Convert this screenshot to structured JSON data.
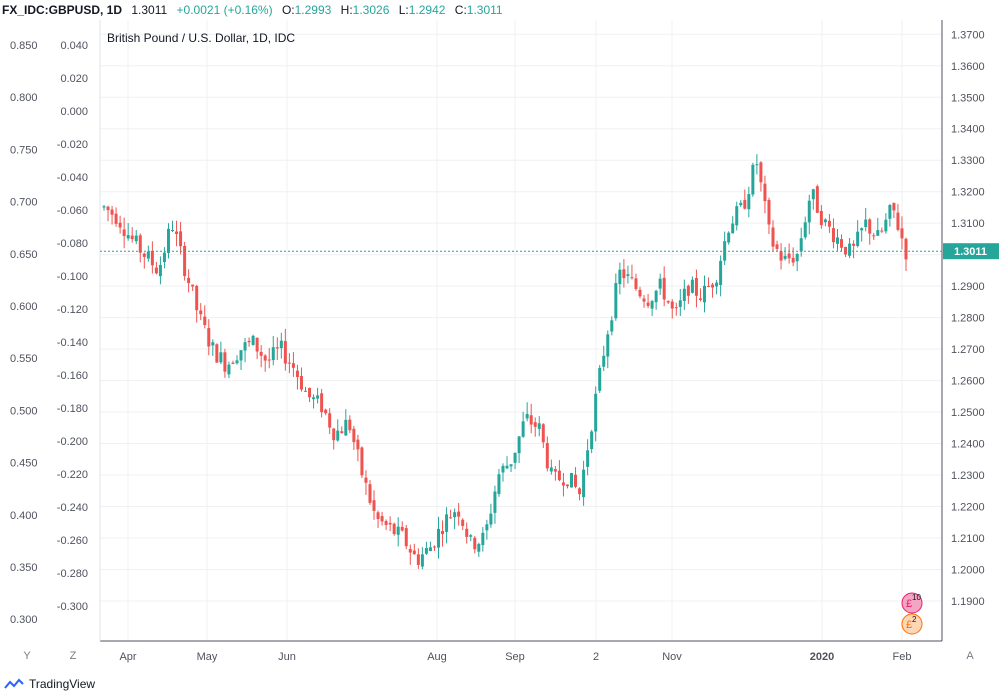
{
  "header": {
    "symbol": "FX_IDC:GBPUSD, 1D",
    "last": "1.3011",
    "change": "+0.0021 (+0.16%)",
    "o_label": "O:",
    "o_value": "1.2993",
    "h_label": "H:",
    "h_value": "1.3026",
    "l_label": "L:",
    "l_value": "1.2942",
    "c_label": "C:",
    "c_value": "1.3011"
  },
  "chart_title": "British Pound / U.S. Dollar, 1D, IDC",
  "price_badge": "1.3011",
  "buttons": {
    "y": "Y",
    "z": "Z",
    "a": "A"
  },
  "branding": "TradingView",
  "colors": {
    "up": "#26a69a",
    "down": "#ef5350",
    "grid": "#eef0f3",
    "axis": "#50535e",
    "price_line": "#26a69a"
  },
  "chart_data": {
    "type": "candlestick",
    "title": "British Pound / U.S. Dollar, 1D, IDC",
    "right_axis": {
      "ticks": [
        "1.3700",
        "1.3600",
        "1.3500",
        "1.3400",
        "1.3300",
        "1.3200",
        "1.3100",
        "1.3000",
        "1.2900",
        "1.2800",
        "1.2700",
        "1.2600",
        "1.2500",
        "1.2400",
        "1.2300",
        "1.2200",
        "1.2100",
        "1.2000",
        "1.1900"
      ],
      "ylim": [
        1.183,
        1.372
      ]
    },
    "left_axis_outer": {
      "ticks": [
        "0.850",
        "0.800",
        "0.750",
        "0.700",
        "0.650",
        "0.600",
        "0.550",
        "0.500",
        "0.450",
        "0.400",
        "0.350",
        "0.300"
      ]
    },
    "left_axis_inner": {
      "ticks": [
        "0.040",
        "0.020",
        "0.000",
        "-0.020",
        "-0.040",
        "-0.060",
        "-0.080",
        "-0.100",
        "-0.120",
        "-0.140",
        "-0.160",
        "-0.180",
        "-0.200",
        "-0.220",
        "-0.240",
        "-0.260",
        "-0.280",
        "-0.300"
      ]
    },
    "x_ticks": [
      "Apr",
      "May",
      "Jun",
      "Aug",
      "Sep",
      "2",
      "Nov",
      "2020",
      "Feb"
    ],
    "last_price": 1.3011,
    "anchors": [
      [
        0,
        1.315
      ],
      [
        10,
        1.312
      ],
      [
        20,
        1.305
      ],
      [
        30,
        1.3
      ],
      [
        40,
        1.295
      ],
      [
        50,
        1.31
      ],
      [
        60,
        1.295
      ],
      [
        70,
        1.28
      ],
      [
        80,
        1.27
      ],
      [
        90,
        1.265
      ],
      [
        100,
        1.27
      ],
      [
        110,
        1.272
      ],
      [
        120,
        1.266
      ],
      [
        130,
        1.27
      ],
      [
        140,
        1.264
      ],
      [
        150,
        1.255
      ],
      [
        160,
        1.252
      ],
      [
        170,
        1.243
      ],
      [
        180,
        1.247
      ],
      [
        190,
        1.23
      ],
      [
        200,
        1.216
      ],
      [
        210,
        1.213
      ],
      [
        220,
        1.21
      ],
      [
        230,
        1.203
      ],
      [
        240,
        1.207
      ],
      [
        250,
        1.215
      ],
      [
        260,
        1.22
      ],
      [
        270,
        1.208
      ],
      [
        280,
        1.21
      ],
      [
        290,
        1.23
      ],
      [
        300,
        1.235
      ],
      [
        310,
        1.248
      ],
      [
        320,
        1.245
      ],
      [
        330,
        1.228
      ],
      [
        340,
        1.23
      ],
      [
        350,
        1.224
      ],
      [
        360,
        1.25
      ],
      [
        370,
        1.275
      ],
      [
        380,
        1.295
      ],
      [
        390,
        1.29
      ],
      [
        400,
        1.286
      ],
      [
        410,
        1.29
      ],
      [
        420,
        1.28
      ],
      [
        430,
        1.29
      ],
      [
        440,
        1.287
      ],
      [
        450,
        1.293
      ],
      [
        460,
        1.31
      ],
      [
        470,
        1.315
      ],
      [
        480,
        1.33
      ],
      [
        490,
        1.305
      ],
      [
        500,
        1.298
      ],
      [
        510,
        1.3
      ],
      [
        520,
        1.32
      ],
      [
        530,
        1.31
      ],
      [
        540,
        1.305
      ],
      [
        550,
        1.3
      ],
      [
        560,
        1.31
      ],
      [
        570,
        1.305
      ],
      [
        580,
        1.315
      ],
      [
        590,
        1.3011
      ]
    ]
  }
}
